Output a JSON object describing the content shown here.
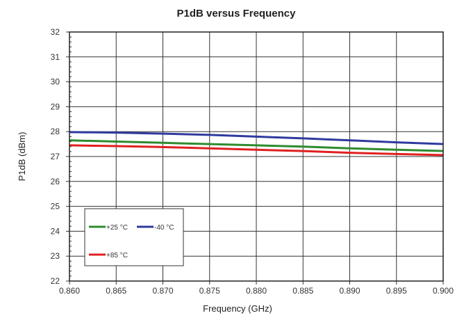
{
  "chart_data": {
    "type": "line",
    "title": "P1dB versus Frequency",
    "xlabel": "Frequency (GHz)",
    "ylabel": "P1dB (dBm)",
    "xlim": [
      0.86,
      0.9
    ],
    "ylim": [
      22,
      32
    ],
    "x_ticks": [
      "0.860",
      "0.865",
      "0.870",
      "0.875",
      "0.880",
      "0.885",
      "0.890",
      "0.895",
      "0.900"
    ],
    "y_ticks": [
      "22",
      "23",
      "24",
      "25",
      "26",
      "27",
      "28",
      "29",
      "30",
      "31",
      "32"
    ],
    "grid": true,
    "legend_position": "bottom-left",
    "x": [
      0.86,
      0.865,
      0.87,
      0.875,
      0.88,
      0.885,
      0.89,
      0.895,
      0.9
    ],
    "series": [
      {
        "name": "+25 °C",
        "color": "#2e8b2e",
        "values": [
          27.65,
          27.6,
          27.55,
          27.5,
          27.45,
          27.4,
          27.33,
          27.27,
          27.22
        ]
      },
      {
        "name": "-40 °C",
        "color": "#2f3a9e",
        "values": [
          27.98,
          27.96,
          27.92,
          27.87,
          27.8,
          27.73,
          27.65,
          27.57,
          27.5
        ]
      },
      {
        "name": "+85 °C",
        "color": "#e02020",
        "values": [
          27.45,
          27.42,
          27.38,
          27.33,
          27.27,
          27.22,
          27.15,
          27.1,
          27.06
        ]
      }
    ]
  }
}
